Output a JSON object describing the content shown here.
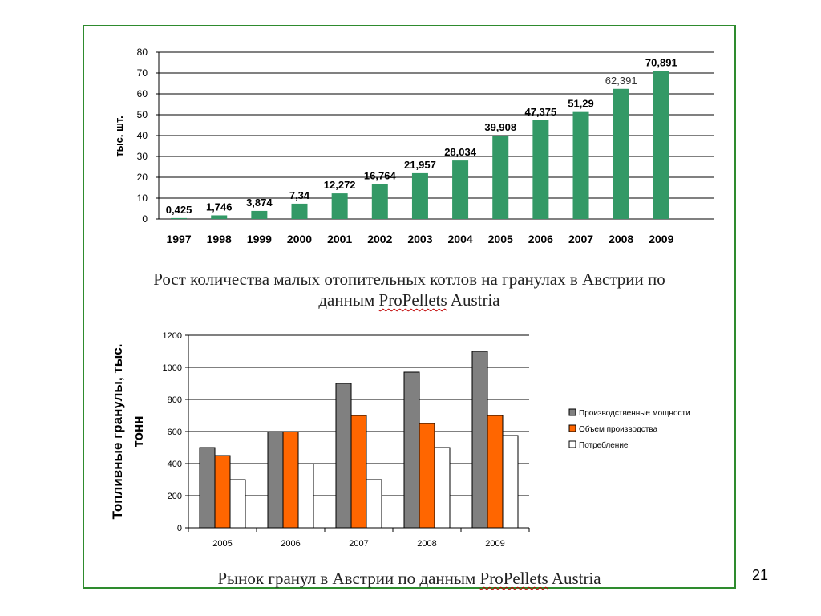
{
  "page_number": "21",
  "captions": {
    "chart1_line1": "Рост количества малых отопительных котлов на гранулах в Австрии по",
    "chart1_line2_pre": "данным ",
    "chart1_line2_brand": "ProPellets",
    "chart1_line2_post": " Austria",
    "chart2_pre": "Рынок гранул в Австрии по данным ",
    "chart2_brand": "ProPellets",
    "chart2_post": " Austria"
  },
  "colors": {
    "frame": "#2e8b2e",
    "bar_green": "#339966",
    "series_gray": "#808080",
    "series_orange": "#ff6600",
    "series_white": "#ffffff"
  },
  "chart_data": [
    {
      "type": "bar",
      "ylabel": "тыс. шт.",
      "ylim": [
        0,
        80
      ],
      "yticks": [
        0,
        10,
        20,
        30,
        40,
        50,
        60,
        70,
        80
      ],
      "grid": true,
      "categories": [
        "1997",
        "1998",
        "1999",
        "2000",
        "2001",
        "2002",
        "2003",
        "2004",
        "2005",
        "2006",
        "2007",
        "2008",
        "2009"
      ],
      "values": [
        0.425,
        1.746,
        3.874,
        7.34,
        12.272,
        16.764,
        21.957,
        28.034,
        39.908,
        47.375,
        51.29,
        62.391,
        70.891
      ],
      "data_labels": [
        "0,425",
        "1,746",
        "3,874",
        "7,34",
        "12,272",
        "16,764",
        "21,957",
        "28,034",
        "39,908",
        "47,375",
        "51,29",
        "62,391",
        "70,891"
      ]
    },
    {
      "type": "bar",
      "ylabel": "Топливные гранулы, тыс. тонн",
      "ylim": [
        0,
        1200
      ],
      "yticks": [
        0,
        200,
        400,
        600,
        800,
        1000,
        1200
      ],
      "grid": true,
      "legend_position": "right",
      "categories": [
        "2005",
        "2006",
        "2007",
        "2008",
        "2009"
      ],
      "series": [
        {
          "name": "Производственные мощности",
          "color": "#808080",
          "values": [
            500,
            600,
            900,
            970,
            1100
          ]
        },
        {
          "name": "Объем производства",
          "color": "#ff6600",
          "values": [
            450,
            600,
            700,
            650,
            700
          ]
        },
        {
          "name": "Потребление",
          "color": "#ffffff",
          "values": [
            300,
            400,
            300,
            500,
            575
          ]
        }
      ]
    }
  ]
}
